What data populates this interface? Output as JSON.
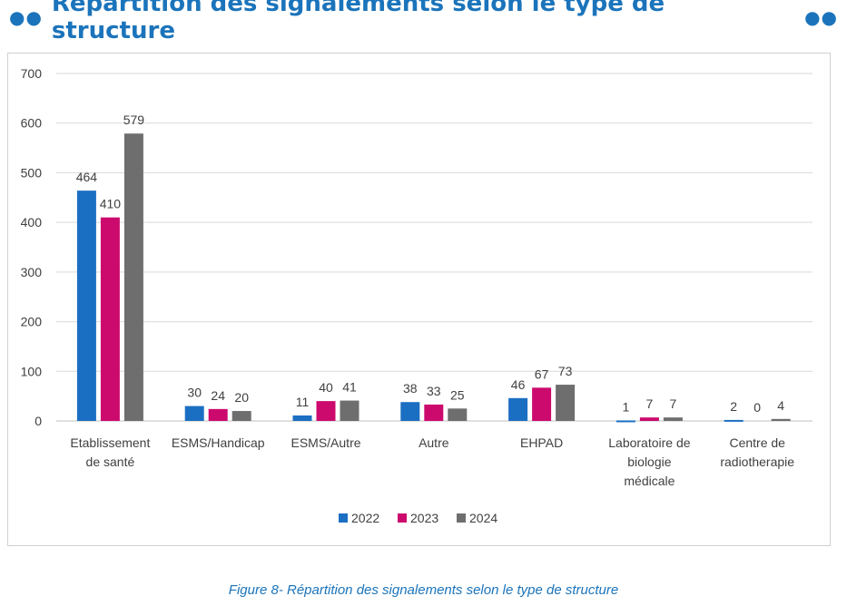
{
  "header": {
    "title": "Répartition des signalements selon le type de structure",
    "decor_left": "●●",
    "decor_right": "●●"
  },
  "caption": "Figure 8- Répartition des signalements selon le type de structure",
  "colors": {
    "title": "#1b74bb",
    "grid": "#d9d9d9",
    "axis_text": "#404040"
  },
  "chart_data": {
    "type": "bar",
    "categories": [
      [
        "Etablissement",
        "de santé"
      ],
      [
        "ESMS/Handicap"
      ],
      [
        "ESMS/Autre"
      ],
      [
        "Autre"
      ],
      [
        "EHPAD"
      ],
      [
        "Laboratoire de",
        "biologie",
        "médicale"
      ],
      [
        "Centre de",
        "radiotherapie"
      ]
    ],
    "series": [
      {
        "name": "2022",
        "color": "#1b6fc2",
        "values": [
          464,
          30,
          11,
          38,
          46,
          1,
          2
        ]
      },
      {
        "name": "2023",
        "color": "#cc0a6e",
        "values": [
          410,
          24,
          40,
          33,
          67,
          7,
          0
        ]
      },
      {
        "name": "2024",
        "color": "#6e6e6e",
        "values": [
          579,
          20,
          41,
          25,
          73,
          7,
          4
        ]
      }
    ],
    "ylim": [
      0,
      700
    ],
    "yticks": [
      0,
      100,
      200,
      300,
      400,
      500,
      600,
      700
    ],
    "grid": true,
    "legend": "bottom",
    "xlabel": "",
    "ylabel": ""
  }
}
